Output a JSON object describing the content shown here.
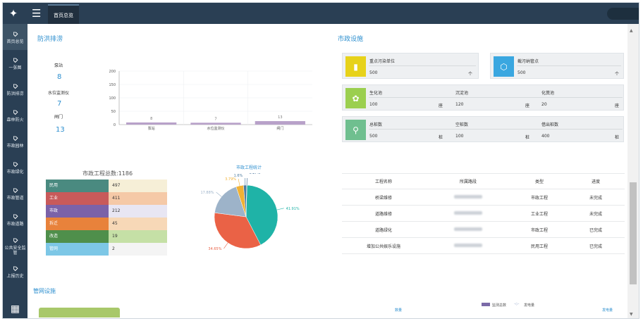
{
  "topbar": {
    "tab_label": "首页总览"
  },
  "sidebar": {
    "items": [
      {
        "label": "首页总览"
      },
      {
        "label": "一张图"
      },
      {
        "label": "防洪排涝"
      },
      {
        "label": "森林防火"
      },
      {
        "label": "市政园林"
      },
      {
        "label": "市政绿化"
      },
      {
        "label": "市政管道"
      },
      {
        "label": "市政道路"
      },
      {
        "label": "公共安全监管"
      },
      {
        "label": "上报历史"
      }
    ]
  },
  "flood": {
    "title": "防洪排涝",
    "stats": [
      {
        "label": "泵站",
        "value": "8"
      },
      {
        "label": "水位监测仪",
        "value": "7"
      },
      {
        "label": "闸门",
        "value": "13"
      }
    ]
  },
  "chart_data": {
    "type": "bar",
    "categories": [
      "泵站",
      "水位监测仪",
      "闸门"
    ],
    "values": [
      8,
      7,
      13
    ],
    "title": "",
    "xlabel": "",
    "ylabel": "",
    "ylim": [
      0,
      200
    ],
    "yticks": [
      "0",
      "50",
      "100",
      "150",
      "200"
    ],
    "color": "#b8a1c9",
    "grid": true
  },
  "engineering": {
    "summary": "市政工程总数:1186",
    "rows": [
      {
        "name": "民用",
        "value": "497",
        "c1": "#4a8a80",
        "c2": "#f6efd7"
      },
      {
        "name": "工业",
        "value": "411",
        "c1": "#c85a5a",
        "c2": "#f5c9a7"
      },
      {
        "name": "市政",
        "value": "212",
        "c1": "#7b62a8",
        "c2": "#e8e6f3"
      },
      {
        "name": "拆迁",
        "value": "45",
        "c1": "#e8823b",
        "c2": "#f7d8b7"
      },
      {
        "name": "改造",
        "value": "19",
        "c1": "#4f8f4b",
        "c2": "#c5e0a6"
      },
      {
        "name": "管网",
        "value": "2",
        "c1": "#7dc7e6",
        "c2": "#f4f4f4"
      }
    ]
  },
  "pie": {
    "title": "市政工程统计",
    "slices": [
      {
        "label": "41.91%",
        "value": 41.91,
        "color": "#1fb3a7"
      },
      {
        "label": "34.65%",
        "value": 34.65,
        "color": "#ea6246"
      },
      {
        "label": "17.88%",
        "value": 17.88,
        "color": "#9db3c9"
      },
      {
        "label": "3.79%",
        "value": 3.79,
        "color": "#f1b133"
      },
      {
        "label": "1.6%",
        "value": 1.6,
        "color": "#4b7a9f"
      },
      {
        "label": "0.17%",
        "value": 0.17,
        "color": "#2f5f8f"
      }
    ]
  },
  "municipal": {
    "title": "市政设施",
    "cards": [
      {
        "title": "重点污染单位",
        "value": "500",
        "unit": "个",
        "color": "#e7d21a",
        "icon": "trash-icon"
      },
      {
        "title": "截污纳管点",
        "value": "500",
        "unit": "个",
        "color": "#3aa7e0",
        "icon": "bin-icon"
      },
      {
        "title": "生化池",
        "value": "100",
        "unit": "座",
        "color": "#9bcf4f",
        "icon": "plant-icon"
      },
      {
        "title": "沉淀池",
        "value": "120",
        "unit": "座"
      },
      {
        "title": "化粪池",
        "value": "20",
        "unit": "座"
      },
      {
        "title": "总桩数",
        "value": "500",
        "unit": "桩",
        "color": "#6fbf8f",
        "icon": "bike-icon"
      },
      {
        "title": "空桩数",
        "value": "100",
        "unit": "桩"
      },
      {
        "title": "借出桩数",
        "value": "400",
        "unit": "桩"
      }
    ]
  },
  "projects": {
    "headers": [
      "工程名称",
      "所属路段",
      "类型",
      "进度"
    ],
    "rows": [
      {
        "name": "桥梁维修",
        "type": "市政工程",
        "status": "未完成"
      },
      {
        "name": "道路维修",
        "type": "工业工程",
        "status": "未完成"
      },
      {
        "name": "道路绿化",
        "type": "市政工程",
        "status": "已完成"
      },
      {
        "name": "增加公共娱乐设施",
        "type": "民用工程",
        "status": "已完成"
      }
    ]
  },
  "pipe": {
    "title": "管网设施"
  },
  "bottom": {
    "left_label": "数量",
    "legend1": "监测总数",
    "legend2": "发电量",
    "right_label": "发电量"
  }
}
